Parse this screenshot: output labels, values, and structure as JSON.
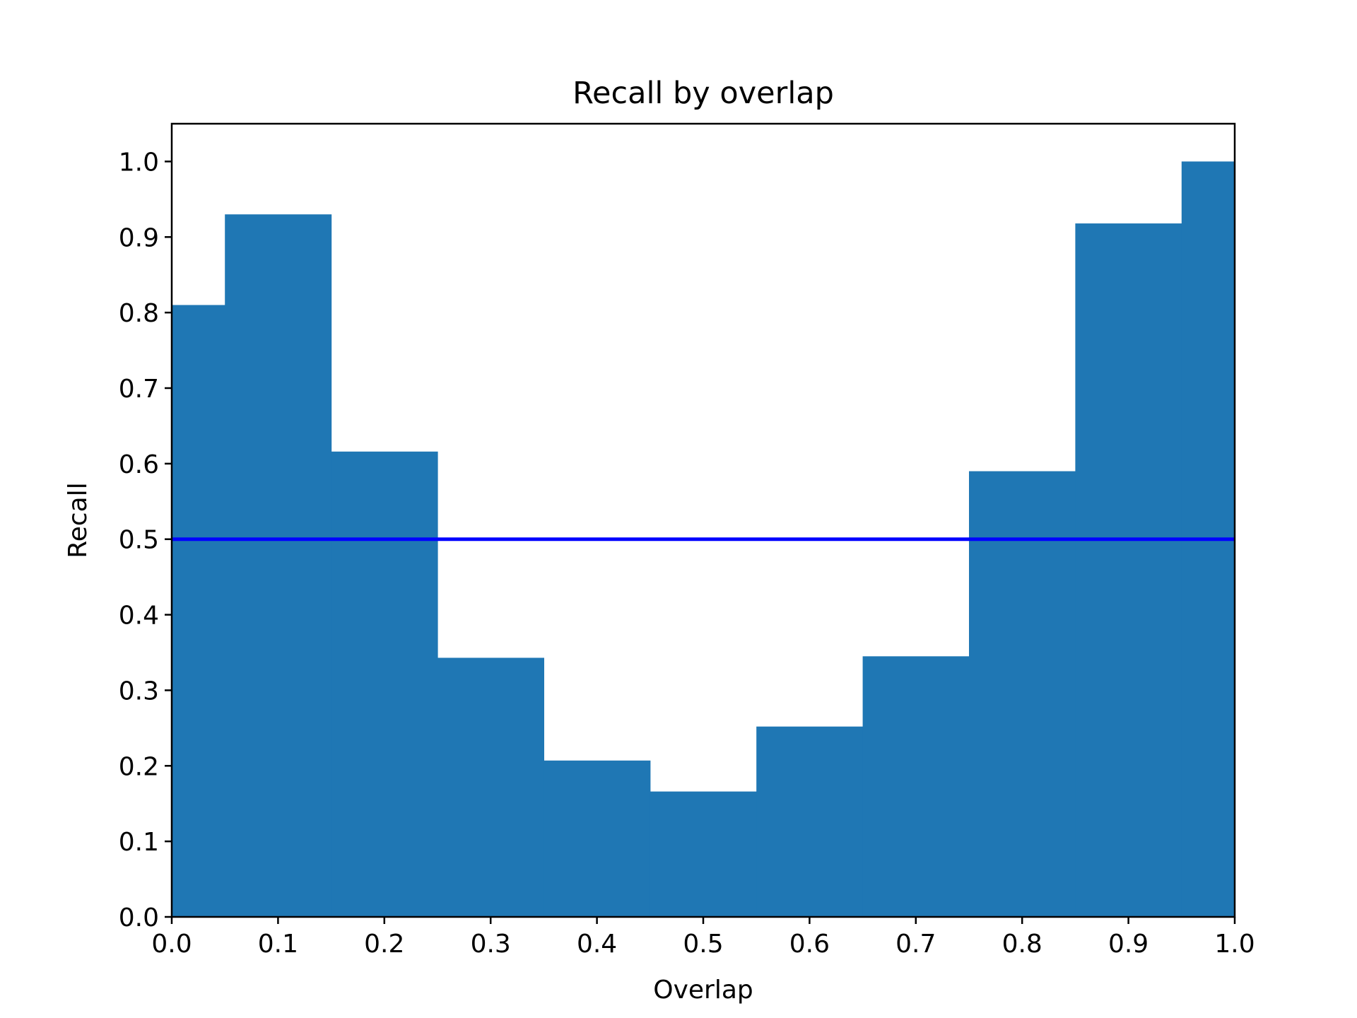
{
  "chart_data": {
    "type": "bar",
    "title": "Recall by overlap",
    "xlabel": "Overlap",
    "ylabel": "Recall",
    "xlim": [
      0.0,
      1.0
    ],
    "ylim": [
      0.0,
      1.05
    ],
    "grid": false,
    "bin_edges": [
      0.0,
      0.05,
      0.15,
      0.25,
      0.35,
      0.45,
      0.55,
      0.65,
      0.75,
      0.85,
      0.95,
      1.0
    ],
    "values": [
      0.81,
      0.93,
      0.616,
      0.343,
      0.207,
      0.166,
      0.252,
      0.345,
      0.59,
      0.918,
      1.0
    ],
    "bar_color": "#1f77b4",
    "reference_line": {
      "y": 0.5,
      "color": "#0000ff"
    },
    "xticks": [
      "0.0",
      "0.1",
      "0.2",
      "0.3",
      "0.4",
      "0.5",
      "0.6",
      "0.7",
      "0.8",
      "0.9",
      "1.0"
    ],
    "yticks": [
      "0.0",
      "0.1",
      "0.2",
      "0.3",
      "0.4",
      "0.5",
      "0.6",
      "0.7",
      "0.8",
      "0.9",
      "1.0"
    ]
  }
}
